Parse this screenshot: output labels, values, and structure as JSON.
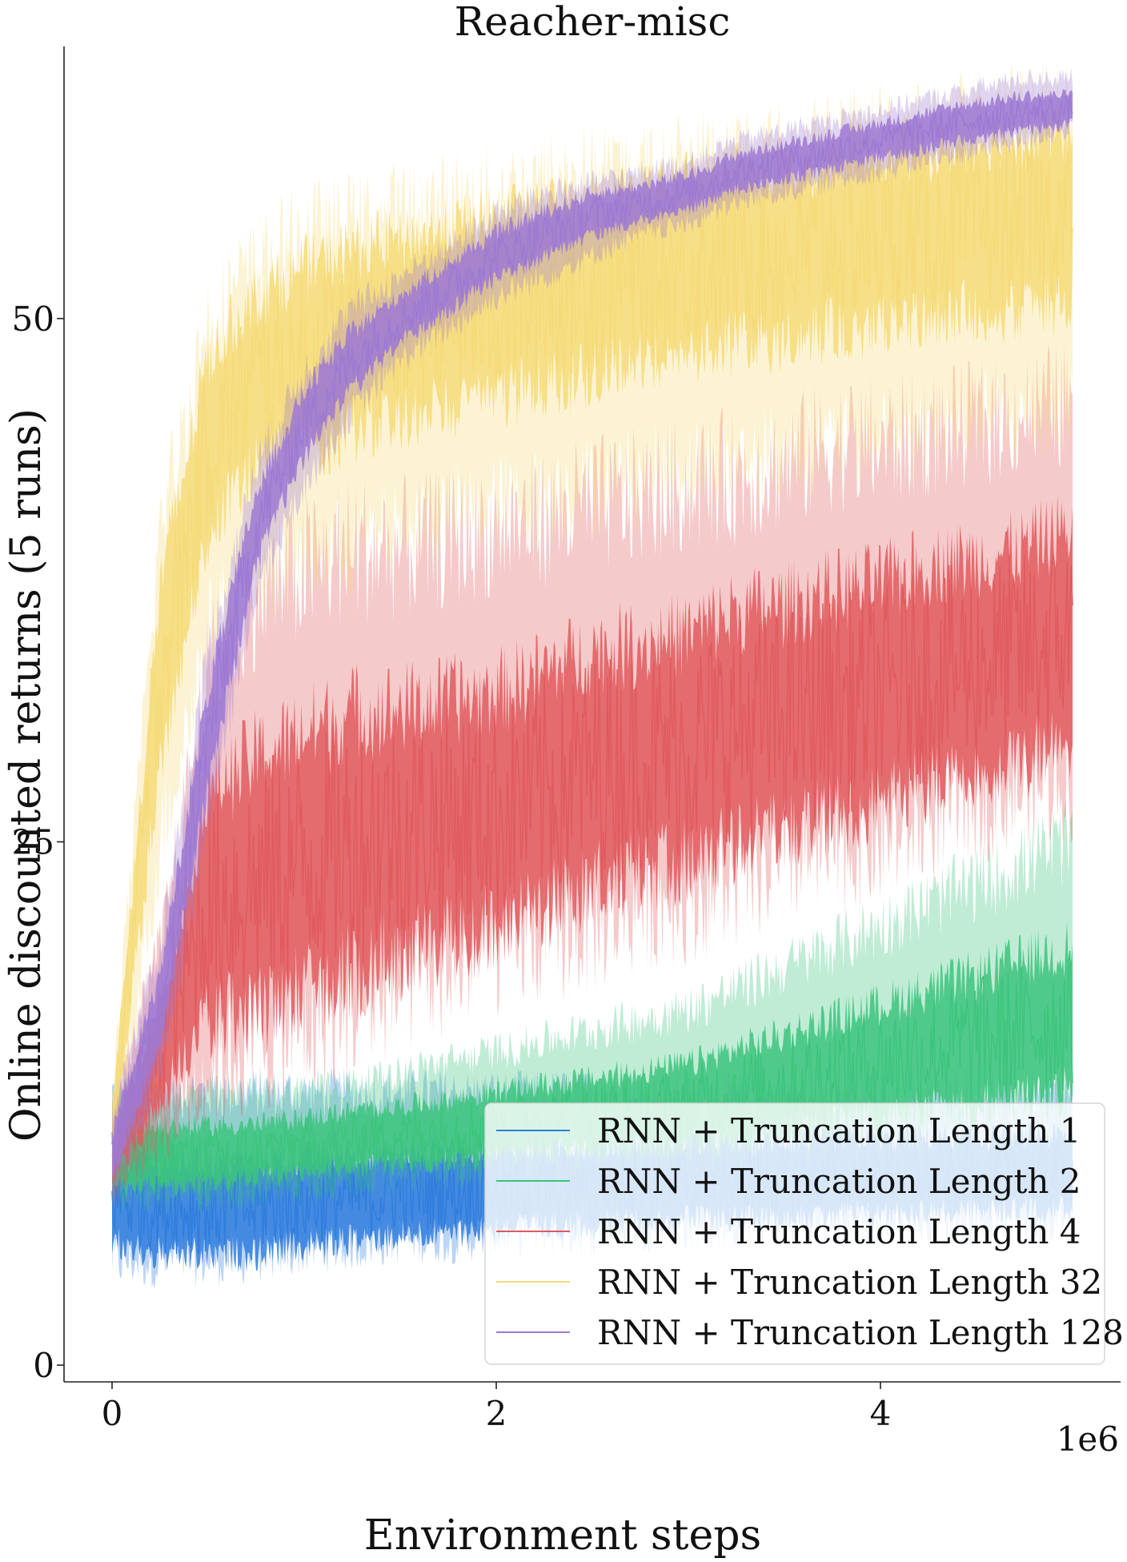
{
  "chart_data": {
    "type": "line",
    "title": "Reacher-misc",
    "xlabel": "Environment steps",
    "ylabel": "Online discounted returns (5 runs)",
    "x_scale_label": "1e6",
    "xlim": [
      -250000,
      5250000
    ],
    "ylim": [
      -0.8,
      63
    ],
    "x_ticks": [
      0,
      2,
      4
    ],
    "y_ticks": [
      0,
      25,
      50
    ],
    "grid": false,
    "legend_position": "lower right",
    "x_range": [
      0,
      5000000
    ],
    "series": [
      {
        "name": "RNN + Truncation Length 1",
        "color": "#2f7ddd",
        "x": [
          0,
          250000,
          500000,
          750000,
          1000000,
          1250000,
          1500000,
          1750000,
          2000000,
          2250000,
          2500000,
          2750000,
          3000000,
          3250000,
          3500000,
          3750000,
          4000000,
          4250000,
          4500000,
          4750000,
          5000000
        ],
        "mean": [
          8,
          7.5,
          7.5,
          7.5,
          7.8,
          8,
          8.2,
          8.3,
          8.5,
          8.5,
          8.6,
          8.7,
          8.8,
          8.8,
          8.9,
          9,
          9,
          9.1,
          9.1,
          9.2,
          9.2
        ],
        "lower": [
          5,
          5,
          5,
          5.2,
          5.5,
          5.7,
          6,
          6,
          6.2,
          6.3,
          6.3,
          6.4,
          6.5,
          6.5,
          6.6,
          6.6,
          6.7,
          6.7,
          6.8,
          6.8,
          6.9
        ],
        "upper": [
          13,
          13,
          13,
          13,
          13,
          13,
          13,
          13,
          13,
          13,
          13,
          13,
          13,
          13,
          13,
          13,
          13,
          13,
          13,
          13,
          13
        ]
      },
      {
        "name": "RNN + Truncation Length 2",
        "color": "#3cc47c",
        "x": [
          0,
          250000,
          500000,
          750000,
          1000000,
          1250000,
          1500000,
          1750000,
          2000000,
          2250000,
          2500000,
          2750000,
          3000000,
          3250000,
          3500000,
          3750000,
          4000000,
          4250000,
          4500000,
          4750000,
          5000000
        ],
        "mean": [
          10,
          10,
          10,
          10.2,
          10.5,
          10.8,
          11,
          11.2,
          11.5,
          11.8,
          12,
          12.2,
          12.5,
          13,
          13.5,
          14,
          14.5,
          15,
          15.5,
          16,
          16.5
        ],
        "lower": [
          8,
          8,
          8,
          8.3,
          8.5,
          8.8,
          9,
          9.3,
          9.5,
          9.8,
          10,
          10,
          10.3,
          10.5,
          10.8,
          11,
          11.2,
          11.5,
          11.8,
          12,
          12.5
        ],
        "upper": [
          13,
          13,
          13,
          13,
          13.2,
          13.5,
          14,
          14.5,
          15,
          15.5,
          16,
          16.5,
          17,
          18,
          19,
          20,
          21,
          22,
          23,
          24,
          25
        ]
      },
      {
        "name": "RNN + Truncation Length 4",
        "color": "#e05a5e",
        "x": [
          0,
          250000,
          500000,
          750000,
          1000000,
          1250000,
          1500000,
          1750000,
          2000000,
          2250000,
          2500000,
          2750000,
          3000000,
          3250000,
          3500000,
          3750000,
          4000000,
          4250000,
          4500000,
          4750000,
          5000000
        ],
        "mean": [
          10,
          15,
          22,
          23,
          24,
          25,
          25.5,
          26,
          26.5,
          27.5,
          28.5,
          29,
          29.5,
          30.5,
          31,
          31.5,
          32,
          33,
          33.5,
          34,
          35
        ],
        "lower": [
          8,
          11,
          14,
          15.5,
          16,
          17,
          18,
          19,
          20,
          20.5,
          21,
          22,
          22.5,
          23,
          24,
          24.5,
          25,
          26,
          27,
          27.5,
          28
        ],
        "upper": [
          12,
          20,
          33,
          37,
          38,
          39,
          39,
          39.5,
          40,
          40.5,
          41,
          41.5,
          42,
          42.5,
          43,
          44,
          44,
          44.5,
          45,
          45.5,
          46
        ]
      },
      {
        "name": "RNN + Truncation Length 32",
        "color": "#f5da78",
        "x": [
          0,
          250000,
          500000,
          750000,
          1000000,
          1250000,
          1500000,
          1750000,
          2000000,
          2250000,
          2500000,
          2750000,
          3000000,
          3250000,
          3500000,
          3750000,
          4000000,
          4250000,
          4500000,
          4750000,
          5000000
        ],
        "mean": [
          11,
          33,
          44,
          47,
          48,
          49,
          49.5,
          50,
          50.5,
          51,
          51.5,
          52,
          52.5,
          53,
          53,
          53.5,
          54,
          54,
          54.5,
          54.5,
          55
        ],
        "lower": [
          9,
          25,
          35,
          38,
          38.5,
          39,
          40,
          40.5,
          41,
          41.5,
          42,
          42.5,
          43,
          43,
          43.5,
          44,
          44,
          44.5,
          45,
          45,
          45.5
        ],
        "upper": [
          13,
          40,
          50,
          52.5,
          54,
          54.5,
          55,
          55.5,
          56,
          56.5,
          57,
          57,
          57.5,
          58,
          58,
          58.5,
          59,
          59,
          59.5,
          60,
          60
        ]
      },
      {
        "name": "RNN + Truncation Length 128",
        "color": "#9d79d3",
        "x": [
          0,
          250000,
          500000,
          750000,
          1000000,
          1250000,
          1500000,
          1750000,
          2000000,
          2250000,
          2500000,
          2750000,
          3000000,
          3250000,
          3500000,
          3750000,
          4000000,
          4250000,
          4500000,
          4750000,
          5000000
        ],
        "mean": [
          10,
          17,
          30,
          40,
          45,
          48,
          50,
          51.5,
          53,
          54,
          55,
          55.5,
          56,
          57,
          57.5,
          58,
          58.5,
          59,
          59.5,
          59.8,
          60
        ],
        "lower": [
          8,
          14,
          26,
          37,
          42,
          45.5,
          48,
          49.5,
          51,
          52,
          53,
          54,
          54.5,
          55.5,
          56,
          56.5,
          57,
          57.5,
          58,
          58.5,
          59
        ],
        "upper": [
          12,
          20,
          34,
          43,
          47.5,
          50.5,
          52,
          53.5,
          55,
          56,
          56.5,
          57,
          57.5,
          58.5,
          59,
          59.5,
          60,
          60.5,
          61,
          61.5,
          61.5
        ]
      }
    ]
  }
}
